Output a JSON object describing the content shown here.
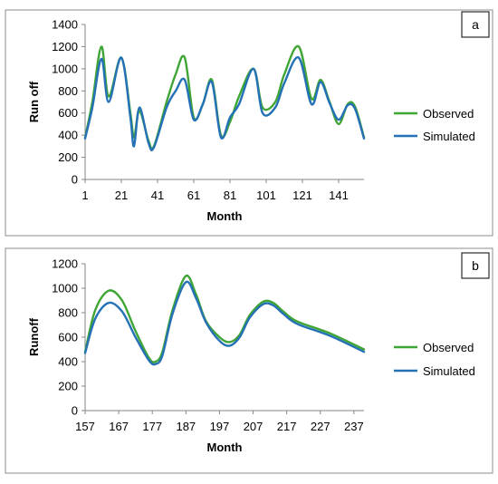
{
  "chart_data": [
    {
      "panel_label": "a",
      "type": "line",
      "xlabel": "Month",
      "ylabel": "Run off",
      "xlim": [
        1,
        155
      ],
      "ylim": [
        0,
        1400
      ],
      "xticks": [
        1,
        21,
        41,
        61,
        81,
        101,
        121,
        141
      ],
      "yticks": [
        0,
        200,
        400,
        600,
        800,
        1000,
        1200,
        1400
      ],
      "grid": false,
      "legend_position": "right",
      "series": [
        {
          "name": "Observed",
          "color": "#3fa535",
          "x": [
            1,
            5,
            10,
            14,
            21,
            26,
            28,
            31,
            36,
            39,
            46,
            51,
            56,
            61,
            66,
            71,
            76,
            81,
            86,
            94,
            99,
            106,
            111,
            119,
            126,
            131,
            136,
            141,
            146,
            150,
            155
          ],
          "y": [
            380,
            700,
            1200,
            750,
            1100,
            600,
            380,
            620,
            350,
            300,
            700,
            950,
            1100,
            560,
            680,
            900,
            400,
            520,
            750,
            1000,
            650,
            700,
            950,
            1200,
            730,
            900,
            700,
            500,
            680,
            660,
            380
          ]
        },
        {
          "name": "Simulated",
          "color": "#2471b5",
          "x": [
            1,
            5,
            10,
            14,
            21,
            26,
            28,
            31,
            36,
            39,
            46,
            51,
            56,
            61,
            66,
            71,
            76,
            81,
            86,
            94,
            99,
            106,
            111,
            119,
            126,
            131,
            136,
            141,
            146,
            150,
            155
          ],
          "y": [
            370,
            650,
            1090,
            700,
            1100,
            560,
            300,
            650,
            330,
            290,
            650,
            800,
            900,
            540,
            680,
            880,
            380,
            560,
            680,
            1000,
            600,
            650,
            870,
            1100,
            680,
            880,
            690,
            540,
            670,
            640,
            370
          ]
        }
      ]
    },
    {
      "panel_label": "b",
      "type": "line",
      "xlabel": "Month",
      "ylabel": "Runoff",
      "xlim": [
        157,
        240
      ],
      "ylim": [
        0,
        1200
      ],
      "xticks": [
        157,
        167,
        177,
        187,
        197,
        207,
        217,
        227,
        237
      ],
      "yticks": [
        0,
        200,
        400,
        600,
        800,
        1000,
        1200
      ],
      "grid": false,
      "legend_position": "right",
      "series": [
        {
          "name": "Observed",
          "color": "#3fa535",
          "x": [
            157,
            160,
            164,
            168,
            172,
            176,
            178,
            180,
            183,
            187,
            190,
            193,
            197,
            200,
            203,
            206,
            210,
            213,
            216,
            220,
            230,
            240
          ],
          "y": [
            480,
            820,
            980,
            900,
            650,
            430,
            400,
            480,
            820,
            1100,
            950,
            730,
            600,
            560,
            620,
            780,
            890,
            880,
            810,
            730,
            630,
            500
          ]
        },
        {
          "name": "Simulated",
          "color": "#2471b5",
          "x": [
            157,
            160,
            164,
            168,
            172,
            176,
            178,
            180,
            183,
            187,
            190,
            193,
            197,
            200,
            203,
            206,
            210,
            213,
            216,
            220,
            230,
            240
          ],
          "y": [
            470,
            750,
            880,
            810,
            600,
            410,
            380,
            450,
            790,
            1050,
            920,
            720,
            570,
            530,
            600,
            760,
            870,
            860,
            790,
            710,
            610,
            480
          ]
        }
      ]
    }
  ]
}
